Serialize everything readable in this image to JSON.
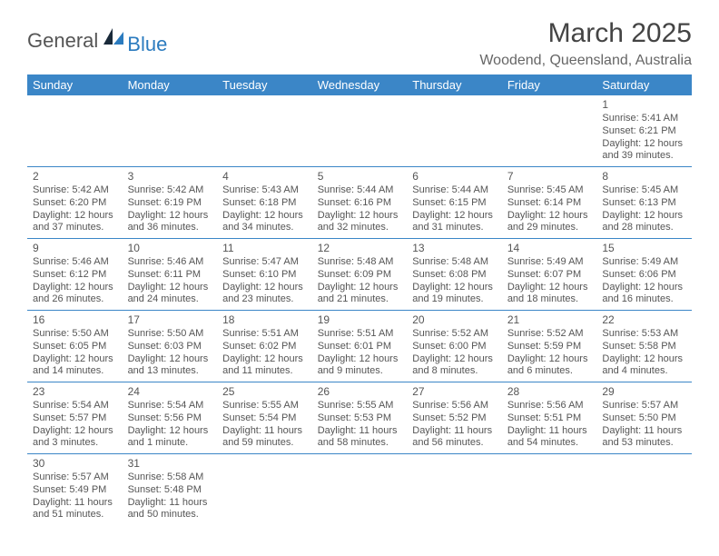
{
  "logo": {
    "main": "General",
    "accent": "Blue"
  },
  "title": "March 2025",
  "location": "Woodend, Queensland, Australia",
  "colors": {
    "header_bg": "#3b86c7",
    "header_fg": "#ffffff",
    "border": "#3b86c7",
    "text": "#555555",
    "logo_accent": "#2b7bbf",
    "logo_dark": "#1a2a3a"
  },
  "day_headers": [
    "Sunday",
    "Monday",
    "Tuesday",
    "Wednesday",
    "Thursday",
    "Friday",
    "Saturday"
  ],
  "weeks": [
    [
      null,
      null,
      null,
      null,
      null,
      null,
      {
        "n": "1",
        "sr": "5:41 AM",
        "ss": "6:21 PM",
        "dl": "12 hours and 39 minutes."
      }
    ],
    [
      {
        "n": "2",
        "sr": "5:42 AM",
        "ss": "6:20 PM",
        "dl": "12 hours and 37 minutes."
      },
      {
        "n": "3",
        "sr": "5:42 AM",
        "ss": "6:19 PM",
        "dl": "12 hours and 36 minutes."
      },
      {
        "n": "4",
        "sr": "5:43 AM",
        "ss": "6:18 PM",
        "dl": "12 hours and 34 minutes."
      },
      {
        "n": "5",
        "sr": "5:44 AM",
        "ss": "6:16 PM",
        "dl": "12 hours and 32 minutes."
      },
      {
        "n": "6",
        "sr": "5:44 AM",
        "ss": "6:15 PM",
        "dl": "12 hours and 31 minutes."
      },
      {
        "n": "7",
        "sr": "5:45 AM",
        "ss": "6:14 PM",
        "dl": "12 hours and 29 minutes."
      },
      {
        "n": "8",
        "sr": "5:45 AM",
        "ss": "6:13 PM",
        "dl": "12 hours and 28 minutes."
      }
    ],
    [
      {
        "n": "9",
        "sr": "5:46 AM",
        "ss": "6:12 PM",
        "dl": "12 hours and 26 minutes."
      },
      {
        "n": "10",
        "sr": "5:46 AM",
        "ss": "6:11 PM",
        "dl": "12 hours and 24 minutes."
      },
      {
        "n": "11",
        "sr": "5:47 AM",
        "ss": "6:10 PM",
        "dl": "12 hours and 23 minutes."
      },
      {
        "n": "12",
        "sr": "5:48 AM",
        "ss": "6:09 PM",
        "dl": "12 hours and 21 minutes."
      },
      {
        "n": "13",
        "sr": "5:48 AM",
        "ss": "6:08 PM",
        "dl": "12 hours and 19 minutes."
      },
      {
        "n": "14",
        "sr": "5:49 AM",
        "ss": "6:07 PM",
        "dl": "12 hours and 18 minutes."
      },
      {
        "n": "15",
        "sr": "5:49 AM",
        "ss": "6:06 PM",
        "dl": "12 hours and 16 minutes."
      }
    ],
    [
      {
        "n": "16",
        "sr": "5:50 AM",
        "ss": "6:05 PM",
        "dl": "12 hours and 14 minutes."
      },
      {
        "n": "17",
        "sr": "5:50 AM",
        "ss": "6:03 PM",
        "dl": "12 hours and 13 minutes."
      },
      {
        "n": "18",
        "sr": "5:51 AM",
        "ss": "6:02 PM",
        "dl": "12 hours and 11 minutes."
      },
      {
        "n": "19",
        "sr": "5:51 AM",
        "ss": "6:01 PM",
        "dl": "12 hours and 9 minutes."
      },
      {
        "n": "20",
        "sr": "5:52 AM",
        "ss": "6:00 PM",
        "dl": "12 hours and 8 minutes."
      },
      {
        "n": "21",
        "sr": "5:52 AM",
        "ss": "5:59 PM",
        "dl": "12 hours and 6 minutes."
      },
      {
        "n": "22",
        "sr": "5:53 AM",
        "ss": "5:58 PM",
        "dl": "12 hours and 4 minutes."
      }
    ],
    [
      {
        "n": "23",
        "sr": "5:54 AM",
        "ss": "5:57 PM",
        "dl": "12 hours and 3 minutes."
      },
      {
        "n": "24",
        "sr": "5:54 AM",
        "ss": "5:56 PM",
        "dl": "12 hours and 1 minute."
      },
      {
        "n": "25",
        "sr": "5:55 AM",
        "ss": "5:54 PM",
        "dl": "11 hours and 59 minutes."
      },
      {
        "n": "26",
        "sr": "5:55 AM",
        "ss": "5:53 PM",
        "dl": "11 hours and 58 minutes."
      },
      {
        "n": "27",
        "sr": "5:56 AM",
        "ss": "5:52 PM",
        "dl": "11 hours and 56 minutes."
      },
      {
        "n": "28",
        "sr": "5:56 AM",
        "ss": "5:51 PM",
        "dl": "11 hours and 54 minutes."
      },
      {
        "n": "29",
        "sr": "5:57 AM",
        "ss": "5:50 PM",
        "dl": "11 hours and 53 minutes."
      }
    ],
    [
      {
        "n": "30",
        "sr": "5:57 AM",
        "ss": "5:49 PM",
        "dl": "11 hours and 51 minutes."
      },
      {
        "n": "31",
        "sr": "5:58 AM",
        "ss": "5:48 PM",
        "dl": "11 hours and 50 minutes."
      },
      null,
      null,
      null,
      null,
      null
    ]
  ],
  "labels": {
    "sunrise": "Sunrise:",
    "sunset": "Sunset:",
    "daylight": "Daylight:"
  }
}
